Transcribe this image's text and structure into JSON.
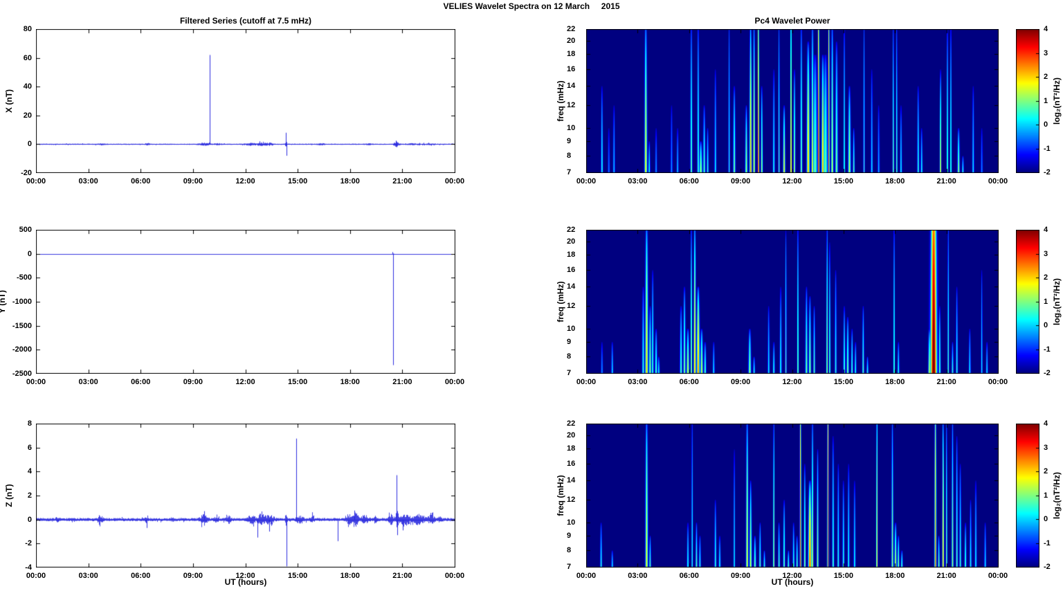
{
  "figure": {
    "title": "VELIES Wavelet Spectra on 12 March     2015"
  },
  "colors": {
    "series_line": "#2222DD",
    "spectrogram_background": "#00008C",
    "axis": "#000000",
    "colormap": "jet"
  },
  "time_axis": {
    "label": "UT (hours)",
    "ticks": [
      "00:00",
      "03:00",
      "06:00",
      "09:00",
      "12:00",
      "15:00",
      "18:00",
      "21:00",
      "00:00"
    ],
    "hours": [
      0,
      3,
      6,
      9,
      12,
      15,
      18,
      21,
      24
    ]
  },
  "colorbar": {
    "label": "log₂(nT²/Hz)",
    "ticks": [
      4,
      3,
      2,
      1,
      0,
      -1,
      -2
    ],
    "clim": [
      -2,
      4
    ]
  },
  "chart_data": [
    {
      "id": "x-series",
      "type": "line",
      "title": "Filtered Series (cutoff at 7.5 mHz)",
      "ylabel": "X (nT)",
      "ylim": [
        -20,
        80
      ],
      "yticks": [
        80,
        60,
        40,
        20,
        0,
        -20
      ],
      "baseline": 0,
      "noise_base": 0.35,
      "noise_bursts": [
        [
          3.7,
          0.25,
          0.5
        ],
        [
          6.35,
          0.1,
          0.8
        ],
        [
          9.6,
          0.3,
          0.7
        ],
        [
          10.4,
          0.3,
          0.4
        ],
        [
          12.2,
          0.3,
          0.6
        ],
        [
          12.9,
          0.4,
          0.8
        ],
        [
          13.4,
          0.2,
          0.6
        ],
        [
          14.3,
          0.05,
          2.0
        ],
        [
          16.3,
          0.2,
          0.4
        ],
        [
          19.0,
          0.2,
          0.3
        ],
        [
          20.6,
          0.15,
          1.5
        ],
        [
          21.5,
          0.4,
          0.4
        ],
        [
          22.5,
          0.4,
          0.3
        ]
      ],
      "spikes": [
        [
          9.95,
          62
        ],
        [
          14.3,
          8
        ],
        [
          14.33,
          -8
        ],
        [
          20.6,
          2.5
        ],
        [
          20.63,
          -2
        ]
      ]
    },
    {
      "id": "y-series",
      "type": "line",
      "ylabel": "Y (nT)",
      "ylim": [
        -2500,
        500
      ],
      "yticks": [
        500,
        0,
        -500,
        -1000,
        -1500,
        -2000,
        -2500
      ],
      "baseline": 0,
      "noise_base": 0.0,
      "noise_bursts": [
        [
          20.42,
          0.05,
          8
        ]
      ],
      "spikes": [
        [
          20.42,
          -2320
        ],
        [
          20.4,
          35
        ]
      ]
    },
    {
      "id": "z-series",
      "type": "line",
      "ylabel": "Z (nT)",
      "xlabel": "UT (hours)",
      "ylim": [
        -4,
        8
      ],
      "yticks": [
        8,
        6,
        4,
        2,
        0,
        -2,
        -4
      ],
      "baseline": 0,
      "noise_base": 0.12,
      "noise_bursts": [
        [
          1.2,
          0.1,
          0.1
        ],
        [
          3.65,
          0.15,
          0.25
        ],
        [
          6.3,
          0.1,
          0.15
        ],
        [
          7.8,
          0.1,
          0.1
        ],
        [
          9.6,
          0.2,
          0.35
        ],
        [
          10.3,
          0.1,
          0.2
        ],
        [
          11.0,
          0.15,
          0.25
        ],
        [
          12.3,
          0.2,
          0.3
        ],
        [
          12.9,
          0.25,
          0.35
        ],
        [
          13.4,
          0.2,
          0.35
        ],
        [
          14.3,
          0.05,
          0.5
        ],
        [
          15.1,
          0.2,
          0.25
        ],
        [
          15.8,
          0.1,
          0.2
        ],
        [
          17.9,
          0.15,
          0.3
        ],
        [
          18.25,
          0.2,
          0.45
        ],
        [
          18.8,
          0.2,
          0.3
        ],
        [
          19.4,
          0.1,
          0.2
        ],
        [
          20.3,
          0.15,
          0.35
        ],
        [
          20.65,
          0.1,
          0.5
        ],
        [
          21.1,
          0.3,
          0.4
        ],
        [
          21.9,
          0.3,
          0.35
        ],
        [
          22.6,
          0.2,
          0.25
        ],
        [
          23.1,
          0.1,
          0.15
        ]
      ],
      "spikes": [
        [
          14.9,
          6.75
        ],
        [
          14.32,
          -3.9
        ],
        [
          12.68,
          -1.5
        ],
        [
          17.25,
          -1.8
        ],
        [
          20.62,
          3.7
        ],
        [
          20.66,
          -1.3
        ],
        [
          9.62,
          0.7
        ],
        [
          6.35,
          -0.7
        ],
        [
          18.2,
          0.75
        ],
        [
          13.35,
          -1.0
        ],
        [
          21.0,
          -0.9
        ]
      ]
    },
    {
      "id": "pc4-wavelet-top",
      "type": "heatmap",
      "title": "Pc4 Wavelet Power",
      "ylabel": "freq (mHz)",
      "flim": [
        7,
        22
      ],
      "fticks": [
        7,
        8,
        9,
        10,
        12,
        14,
        16,
        18,
        20,
        22
      ],
      "clim": [
        -2,
        4
      ],
      "streaks": [
        [
          0.9,
          14,
          0.6,
          0.05
        ],
        [
          1.3,
          10,
          -0.4,
          0.05
        ],
        [
          1.6,
          12,
          0.1,
          0.05
        ],
        [
          3.45,
          24,
          1.9,
          0.07
        ],
        [
          3.65,
          9,
          0.6,
          0.05
        ],
        [
          4.05,
          10,
          -0.2,
          0.05
        ],
        [
          4.95,
          12,
          -0.2,
          0.05
        ],
        [
          5.3,
          10,
          0.1,
          0.05
        ],
        [
          6.1,
          24,
          1.1,
          0.05
        ],
        [
          6.5,
          24,
          0.9,
          0.05
        ],
        [
          6.65,
          9,
          1.3,
          0.08
        ],
        [
          6.85,
          12,
          0.8,
          0.06
        ],
        [
          7.05,
          10,
          0.6,
          0.05
        ],
        [
          7.5,
          16,
          0.4,
          0.05
        ],
        [
          8.3,
          24,
          0.6,
          0.04
        ],
        [
          8.6,
          14,
          1.1,
          0.06
        ],
        [
          9.3,
          12,
          1.4,
          0.06
        ],
        [
          9.55,
          24,
          2.6,
          0.06
        ],
        [
          9.75,
          24,
          2.0,
          0.05
        ],
        [
          10.0,
          36,
          3.7,
          0.035
        ],
        [
          10.2,
          14,
          1.4,
          0.05
        ],
        [
          10.9,
          16,
          0.6,
          0.05
        ],
        [
          11.2,
          24,
          0.9,
          0.04
        ],
        [
          11.5,
          12,
          1.8,
          0.06
        ],
        [
          11.9,
          36,
          2.8,
          0.035
        ],
        [
          12.1,
          16,
          1.5,
          0.05
        ],
        [
          12.5,
          24,
          1.2,
          0.05
        ],
        [
          12.9,
          20,
          2.3,
          0.08
        ],
        [
          13.15,
          24,
          1.8,
          0.06
        ],
        [
          13.3,
          18,
          0.9,
          0.12
        ],
        [
          13.5,
          36,
          3.8,
          0.04
        ],
        [
          13.75,
          18,
          2.4,
          0.07
        ],
        [
          13.9,
          18,
          0.9,
          0.12
        ],
        [
          14.1,
          36,
          3.0,
          0.04
        ],
        [
          14.3,
          24,
          1.6,
          0.06
        ],
        [
          14.55,
          20,
          1.1,
          0.07
        ],
        [
          15.0,
          24,
          0.9,
          0.04
        ],
        [
          15.3,
          14,
          1.5,
          0.07
        ],
        [
          15.55,
          10,
          0.9,
          0.05
        ],
        [
          16.15,
          24,
          0.7,
          0.04
        ],
        [
          16.6,
          16,
          0.3,
          0.05
        ],
        [
          17.0,
          12,
          0.0,
          0.05
        ],
        [
          17.85,
          24,
          1.1,
          0.04
        ],
        [
          18.05,
          24,
          0.9,
          0.04
        ],
        [
          18.3,
          12,
          0.4,
          0.05
        ],
        [
          19.3,
          14,
          0.7,
          0.05
        ],
        [
          19.5,
          10,
          0.5,
          0.05
        ],
        [
          20.6,
          16,
          2.1,
          0.04
        ],
        [
          21.0,
          24,
          1.1,
          0.04
        ],
        [
          21.2,
          24,
          1.0,
          0.04
        ],
        [
          21.65,
          10,
          1.3,
          0.06
        ],
        [
          21.9,
          8,
          0.6,
          0.05
        ],
        [
          22.5,
          14,
          0.3,
          0.05
        ],
        [
          23.0,
          10,
          -0.3,
          0.05
        ]
      ]
    },
    {
      "id": "pc4-wavelet-middle",
      "type": "heatmap",
      "ylabel": "freq (mHz)",
      "flim": [
        7,
        22
      ],
      "fticks": [
        7,
        8,
        9,
        10,
        12,
        14,
        16,
        18,
        20,
        22
      ],
      "clim": [
        -2,
        4
      ],
      "streaks": [
        [
          0.9,
          9,
          -0.2,
          0.05
        ],
        [
          1.5,
          9,
          0.3,
          0.05
        ],
        [
          3.3,
          14,
          0.6,
          0.06
        ],
        [
          3.5,
          24,
          2.1,
          0.08
        ],
        [
          3.7,
          12,
          1.3,
          0.06
        ],
        [
          3.85,
          16,
          0.9,
          0.05
        ],
        [
          4.05,
          10,
          0.9,
          0.06
        ],
        [
          4.2,
          8,
          0.6,
          0.05
        ],
        [
          5.5,
          12,
          0.9,
          0.06
        ],
        [
          5.7,
          14,
          1.2,
          0.06
        ],
        [
          5.9,
          10,
          1.6,
          0.07
        ],
        [
          6.1,
          24,
          1.6,
          0.04
        ],
        [
          6.3,
          24,
          2.3,
          0.06
        ],
        [
          6.5,
          14,
          2.6,
          0.08
        ],
        [
          6.7,
          10,
          1.6,
          0.07
        ],
        [
          6.9,
          9,
          0.9,
          0.06
        ],
        [
          7.4,
          9,
          0.4,
          0.05
        ],
        [
          9.5,
          10,
          1.3,
          0.07
        ],
        [
          9.75,
          8,
          0.6,
          0.05
        ],
        [
          10.6,
          12,
          0.4,
          0.05
        ],
        [
          10.9,
          9,
          0.7,
          0.05
        ],
        [
          11.3,
          14,
          0.6,
          0.05
        ],
        [
          11.6,
          22,
          0.9,
          0.04
        ],
        [
          12.3,
          24,
          1.3,
          0.04
        ],
        [
          12.8,
          14,
          1.1,
          0.06
        ],
        [
          13.0,
          13,
          1.3,
          0.06
        ],
        [
          13.25,
          12,
          0.9,
          0.05
        ],
        [
          14.0,
          24,
          1.6,
          0.04
        ],
        [
          14.15,
          20,
          1.1,
          0.04
        ],
        [
          14.5,
          16,
          0.6,
          0.05
        ],
        [
          15.0,
          12,
          0.9,
          0.05
        ],
        [
          15.2,
          11,
          1.1,
          0.06
        ],
        [
          15.45,
          10,
          0.9,
          0.05
        ],
        [
          15.65,
          9,
          0.6,
          0.05
        ],
        [
          16.1,
          12,
          0.9,
          0.05
        ],
        [
          16.35,
          8,
          0.6,
          0.05
        ],
        [
          17.9,
          24,
          1.1,
          0.04
        ],
        [
          18.15,
          9,
          0.6,
          0.05
        ],
        [
          19.95,
          10,
          1.6,
          0.06
        ],
        [
          20.2,
          45,
          4.5,
          0.17
        ],
        [
          20.55,
          12,
          1.1,
          0.05
        ],
        [
          21.05,
          24,
          0.9,
          0.04
        ],
        [
          21.3,
          9,
          0.7,
          0.05
        ],
        [
          21.55,
          14,
          0.6,
          0.05
        ],
        [
          22.3,
          10,
          0.4,
          0.05
        ],
        [
          23.0,
          16,
          0.4,
          0.04
        ],
        [
          23.3,
          9,
          0.3,
          0.05
        ]
      ]
    },
    {
      "id": "pc4-wavelet-bottom",
      "type": "heatmap",
      "ylabel": "freq (mHz)",
      "xlabel": "UT (hours)",
      "flim": [
        7,
        22
      ],
      "fticks": [
        7,
        8,
        9,
        10,
        12,
        14,
        16,
        18,
        20,
        22
      ],
      "clim": [
        -2,
        4
      ],
      "streaks": [
        [
          0.85,
          10,
          0.6,
          0.05
        ],
        [
          1.5,
          8,
          0.3,
          0.05
        ],
        [
          3.5,
          24,
          1.9,
          0.07
        ],
        [
          3.7,
          9,
          0.9,
          0.05
        ],
        [
          5.9,
          10,
          0.6,
          0.05
        ],
        [
          6.15,
          24,
          0.6,
          0.04
        ],
        [
          6.4,
          10,
          0.9,
          0.05
        ],
        [
          6.6,
          9,
          0.6,
          0.05
        ],
        [
          7.5,
          12,
          0.7,
          0.05
        ],
        [
          7.75,
          9,
          0.5,
          0.05
        ],
        [
          8.6,
          18,
          0.5,
          0.04
        ],
        [
          9.35,
          24,
          1.9,
          0.06
        ],
        [
          9.55,
          14,
          1.6,
          0.06
        ],
        [
          9.8,
          9,
          1.1,
          0.06
        ],
        [
          10.1,
          10,
          0.9,
          0.05
        ],
        [
          10.35,
          8,
          0.7,
          0.05
        ],
        [
          10.9,
          24,
          1.6,
          0.04
        ],
        [
          11.2,
          10,
          0.9,
          0.05
        ],
        [
          11.5,
          12,
          1.1,
          0.05
        ],
        [
          11.75,
          8,
          0.9,
          0.05
        ],
        [
          12.05,
          10,
          0.7,
          0.05
        ],
        [
          12.25,
          9,
          0.9,
          0.05
        ],
        [
          12.45,
          36,
          3.2,
          0.04
        ],
        [
          12.7,
          16,
          1.3,
          0.05
        ],
        [
          13.0,
          14,
          2.9,
          0.09
        ],
        [
          13.15,
          24,
          1.6,
          0.05
        ],
        [
          13.45,
          18,
          1.3,
          0.05
        ],
        [
          14.05,
          36,
          3.4,
          0.04
        ],
        [
          14.35,
          20,
          0.9,
          0.05
        ],
        [
          14.65,
          16,
          0.6,
          0.05
        ],
        [
          14.95,
          14,
          0.7,
          0.05
        ],
        [
          15.25,
          16,
          0.6,
          0.05
        ],
        [
          15.6,
          14,
          0.5,
          0.05
        ],
        [
          16.9,
          30,
          2.1,
          0.04
        ],
        [
          17.8,
          24,
          1.3,
          0.05
        ],
        [
          17.98,
          10,
          1.6,
          0.06
        ],
        [
          18.15,
          9,
          1.3,
          0.05
        ],
        [
          18.35,
          8,
          0.9,
          0.05
        ],
        [
          20.3,
          32,
          2.9,
          0.05
        ],
        [
          20.5,
          9,
          1.1,
          0.05
        ],
        [
          20.75,
          24,
          2.3,
          0.05
        ],
        [
          20.95,
          24,
          1.1,
          0.04
        ],
        [
          21.3,
          24,
          1.3,
          0.05
        ],
        [
          21.55,
          20,
          0.9,
          0.05
        ],
        [
          21.75,
          16,
          0.7,
          0.05
        ],
        [
          22.05,
          10,
          0.9,
          0.05
        ],
        [
          22.35,
          12,
          0.5,
          0.05
        ],
        [
          22.65,
          14,
          0.4,
          0.05
        ],
        [
          23.2,
          10,
          0.3,
          0.05
        ]
      ]
    }
  ]
}
